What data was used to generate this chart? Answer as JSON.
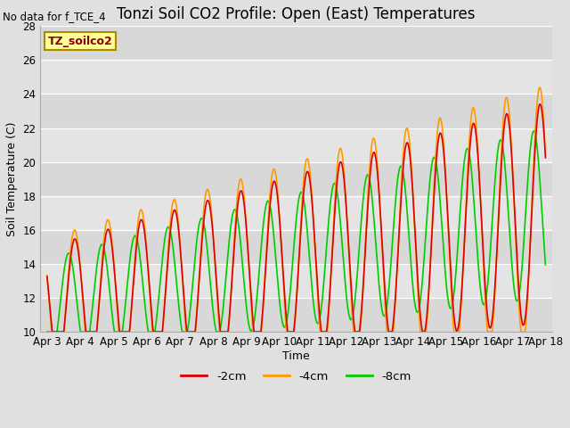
{
  "title": "Tonzi Soil CO2 Profile: Open (East) Temperatures",
  "no_data_text": "No data for f_TCE_4",
  "subtitle_box": "TZ_soilco2",
  "ylabel": "Soil Temperature (C)",
  "xlabel": "Time",
  "ylim": [
    10,
    28
  ],
  "series": [
    {
      "label": "-2cm",
      "color": "#dd0000"
    },
    {
      "label": "-4cm",
      "color": "#ff9900"
    },
    {
      "label": "-8cm",
      "color": "#00cc00"
    }
  ],
  "xtick_labels": [
    "Apr 3",
    "Apr 4",
    "Apr 5",
    "Apr 6",
    "Apr 7",
    "Apr 8",
    "Apr 9",
    "Apr 10",
    "Apr 11",
    "Apr 12",
    "Apr 13",
    "Apr 14",
    "Apr 15",
    "Apr 16",
    "Apr 17",
    "Apr 18"
  ],
  "title_fontsize": 12,
  "axis_fontsize": 9,
  "tick_fontsize": 8.5,
  "fig_width": 6.4,
  "fig_height": 4.8,
  "dpi": 100
}
